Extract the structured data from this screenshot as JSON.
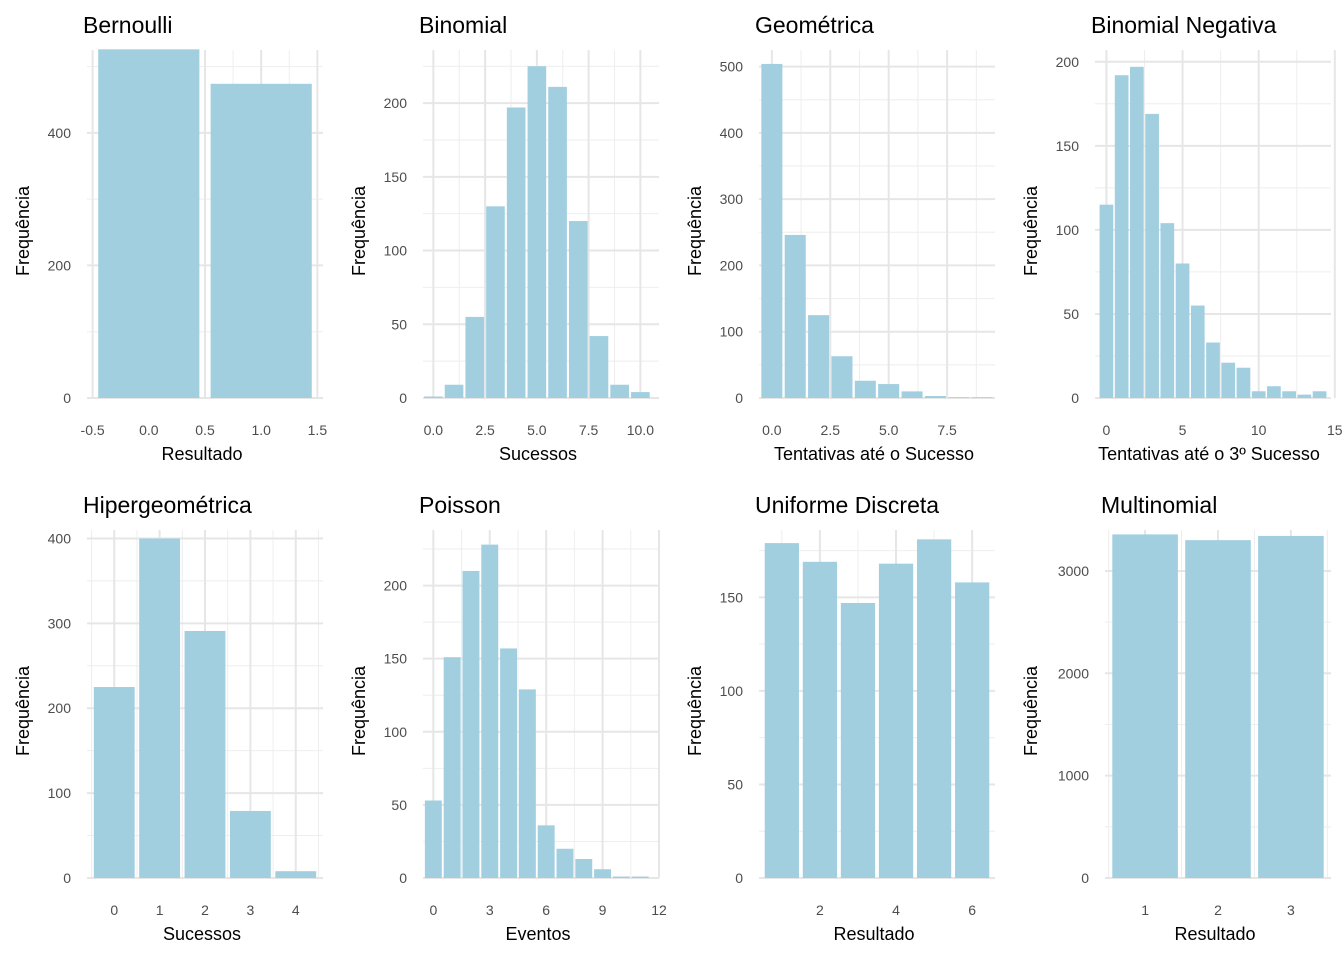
{
  "chart_data": [
    {
      "type": "bar",
      "title": "Bernoulli",
      "xlabel": "Resultado",
      "ylabel": "Frequência",
      "xlim": [
        -0.55,
        1.55
      ],
      "ylim": [
        0,
        525
      ],
      "x_ticks": [
        -0.5,
        0.0,
        0.5,
        1.0,
        1.5
      ],
      "x_tick_labels": [
        "-0.5",
        "0.0",
        "0.5",
        "1.0",
        "1.5"
      ],
      "y_ticks": [
        0,
        200,
        400
      ],
      "y_tick_labels": [
        "0",
        "200",
        "400"
      ],
      "bar_width": 0.9,
      "x": [
        0,
        1
      ],
      "values": [
        526,
        474
      ],
      "color": "#a1cfe0"
    },
    {
      "type": "bar",
      "title": "Binomial",
      "xlabel": "Sucessos",
      "ylabel": "Frequência",
      "xlim": [
        -0.5,
        10.9
      ],
      "ylim": [
        0,
        236
      ],
      "x_ticks": [
        0,
        2.5,
        5,
        7.5,
        10
      ],
      "x_tick_labels": [
        "0.0",
        "2.5",
        "5.0",
        "7.5",
        "10.0"
      ],
      "y_ticks": [
        0,
        50,
        100,
        150,
        200
      ],
      "y_tick_labels": [
        "0",
        "50",
        "100",
        "150",
        "200"
      ],
      "bar_width": 0.9,
      "x": [
        0,
        1,
        2,
        3,
        4,
        5,
        6,
        7,
        8,
        9,
        10
      ],
      "values": [
        1,
        9,
        55,
        130,
        197,
        225,
        211,
        120,
        42,
        9,
        4
      ],
      "color": "#a1cfe0"
    },
    {
      "type": "bar",
      "title": "Geométrica",
      "xlabel": "Tentativas até o Sucesso",
      "ylabel": "Frequência",
      "xlim": [
        -0.55,
        9.55
      ],
      "ylim": [
        0,
        525
      ],
      "x_ticks": [
        0,
        2.5,
        5,
        7.5
      ],
      "x_tick_labels": [
        "0.0",
        "2.5",
        "5.0",
        "7.5"
      ],
      "y_ticks": [
        0,
        100,
        200,
        300,
        400,
        500
      ],
      "y_tick_labels": [
        "0",
        "100",
        "200",
        "300",
        "400",
        "500"
      ],
      "bar_width": 0.9,
      "x": [
        0,
        1,
        2,
        3,
        4,
        5,
        6,
        7,
        8,
        9
      ],
      "values": [
        504,
        246,
        125,
        63,
        26,
        21,
        10,
        3,
        1,
        1
      ],
      "color": "#a1cfe0"
    },
    {
      "type": "bar",
      "title": "Binomial Negativa",
      "xlabel": "Tentativas até o 3º Sucesso",
      "ylabel": "Frequência",
      "xlim": [
        -0.75,
        14.75
      ],
      "ylim": [
        0,
        207
      ],
      "x_ticks": [
        0,
        5,
        10,
        15
      ],
      "x_tick_labels": [
        "0",
        "5",
        "10",
        "15"
      ],
      "y_ticks": [
        0,
        50,
        100,
        150,
        200
      ],
      "y_tick_labels": [
        "0",
        "50",
        "100",
        "150",
        "200"
      ],
      "bar_width": 0.9,
      "x": [
        0,
        1,
        2,
        3,
        4,
        5,
        6,
        7,
        8,
        9,
        10,
        11,
        12,
        13,
        14
      ],
      "values": [
        115,
        192,
        197,
        169,
        104,
        80,
        55,
        33,
        21,
        18,
        4,
        7,
        4,
        2,
        4
      ],
      "color": "#a1cfe0"
    },
    {
      "type": "bar",
      "title": "Hipergeométrica",
      "xlabel": "Sucessos",
      "ylabel": "Frequência",
      "xlim": [
        -0.6,
        4.6
      ],
      "ylim": [
        0,
        410
      ],
      "x_ticks": [
        0,
        1,
        2,
        3,
        4
      ],
      "x_tick_labels": [
        "0",
        "1",
        "2",
        "3",
        "4"
      ],
      "y_ticks": [
        0,
        100,
        200,
        300,
        400
      ],
      "y_tick_labels": [
        "0",
        "100",
        "200",
        "300",
        "400"
      ],
      "bar_width": 0.9,
      "x": [
        0,
        1,
        2,
        3,
        4
      ],
      "values": [
        225,
        400,
        291,
        79,
        8
      ],
      "color": "#a1cfe0"
    },
    {
      "type": "bar",
      "title": "Poisson",
      "xlabel": "Eventos",
      "ylabel": "Frequência",
      "xlim": [
        -0.55,
        12.0
      ],
      "ylim": [
        0,
        238
      ],
      "x_ticks": [
        0,
        3,
        6,
        9,
        12
      ],
      "x_tick_labels": [
        "0",
        "3",
        "6",
        "9",
        "12"
      ],
      "y_ticks": [
        0,
        50,
        100,
        150,
        200
      ],
      "y_tick_labels": [
        "0",
        "50",
        "100",
        "150",
        "200"
      ],
      "bar_width": 0.9,
      "x": [
        0,
        1,
        2,
        3,
        4,
        5,
        6,
        7,
        8,
        9,
        10,
        11
      ],
      "values": [
        53,
        151,
        210,
        228,
        157,
        129,
        36,
        20,
        13,
        6,
        1,
        1
      ],
      "color": "#a1cfe0"
    },
    {
      "type": "bar",
      "title": "Uniforme Discreta",
      "xlabel": "Resultado",
      "ylabel": "Frequência",
      "xlim": [
        0.4,
        6.6
      ],
      "ylim": [
        0,
        186
      ],
      "x_ticks": [
        2,
        4,
        6
      ],
      "x_tick_labels": [
        "2",
        "4",
        "6"
      ],
      "y_ticks": [
        0,
        50,
        100,
        150
      ],
      "y_tick_labels": [
        "0",
        "50",
        "100",
        "150"
      ],
      "bar_width": 0.9,
      "x": [
        1,
        2,
        3,
        4,
        5,
        6
      ],
      "values": [
        179,
        169,
        147,
        168,
        181,
        158
      ],
      "color": "#a1cfe0"
    },
    {
      "type": "bar",
      "title": "Multinomial",
      "xlabel": "Resultado",
      "ylabel": "Frequência",
      "xlim": [
        0.45,
        3.55
      ],
      "ylim": [
        0,
        3400
      ],
      "x_ticks": [
        1,
        2,
        3
      ],
      "x_tick_labels": [
        "1",
        "2",
        "3"
      ],
      "y_ticks": [
        0,
        1000,
        2000,
        3000
      ],
      "y_tick_labels": [
        "0",
        "1000",
        "2000",
        "3000"
      ],
      "bar_width": 0.9,
      "x": [
        1,
        2,
        3
      ],
      "values": [
        3357,
        3301,
        3342
      ],
      "color": "#a1cfe0"
    }
  ]
}
